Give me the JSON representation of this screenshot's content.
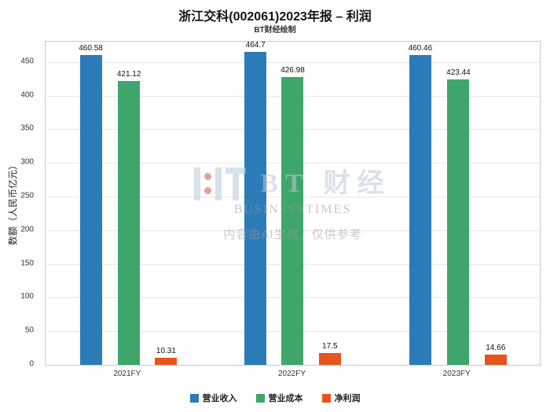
{
  "chart_data": {
    "type": "bar",
    "title": "浙江交科(002061)2023年报 – 利润",
    "subtitle": "BT财经绘制",
    "categories": [
      "2021FY",
      "2022FY",
      "2023FY"
    ],
    "series": [
      {
        "name": "营业收入",
        "color": "#2b7cb8",
        "values": [
          460.58,
          464.7,
          460.46
        ]
      },
      {
        "name": "营业成本",
        "color": "#3fa66b",
        "values": [
          421.12,
          426.98,
          423.44
        ]
      },
      {
        "name": "净利润",
        "color": "#e8541e",
        "values": [
          10.31,
          17.5,
          14.66
        ]
      }
    ],
    "xlabel": "",
    "ylabel": "数额（人民币亿元）",
    "ylim": [
      0,
      480
    ],
    "yticks": [
      0,
      50,
      100,
      150,
      200,
      250,
      300,
      350,
      400,
      450
    ],
    "grid": true,
    "legend_position": "bottom"
  },
  "watermark": {
    "logo_text": "BT 财经",
    "logo_subtext": "BUSINESSTIMES",
    "disclaimer": "内容由AI生成，仅供参考"
  }
}
